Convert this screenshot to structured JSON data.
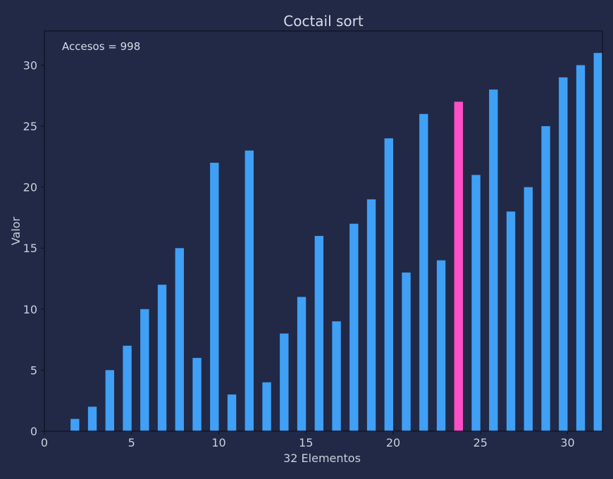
{
  "chart_data": {
    "type": "bar",
    "title": "Coctail sort",
    "xlabel": "32 Elementos",
    "ylabel": "Valor",
    "annotation": "Accesos = 998",
    "xlim": [
      0,
      32
    ],
    "ylim": [
      0,
      32.8
    ],
    "xticks": [
      0,
      5,
      10,
      15,
      20,
      25,
      30
    ],
    "yticks": [
      0,
      5,
      10,
      15,
      20,
      25,
      30
    ],
    "grid": false,
    "x": [
      0,
      1,
      2,
      3,
      4,
      5,
      6,
      7,
      8,
      9,
      10,
      11,
      12,
      13,
      14,
      15,
      16,
      17,
      18,
      19,
      20,
      21,
      22,
      23,
      24,
      25,
      26,
      27,
      28,
      29,
      30,
      31
    ],
    "values": [
      0,
      1,
      2,
      5,
      7,
      10,
      12,
      15,
      6,
      22,
      3,
      23,
      4,
      8,
      11,
      16,
      9,
      17,
      19,
      24,
      13,
      26,
      14,
      27,
      21,
      28,
      18,
      20,
      25,
      29,
      30,
      31
    ],
    "highlight_index": 23,
    "colors": {
      "background": "#212946",
      "bar": "#3fa0f5",
      "highlight": "#ff4fc6",
      "axis": "#0d1020",
      "text": "#d7dce8"
    }
  }
}
